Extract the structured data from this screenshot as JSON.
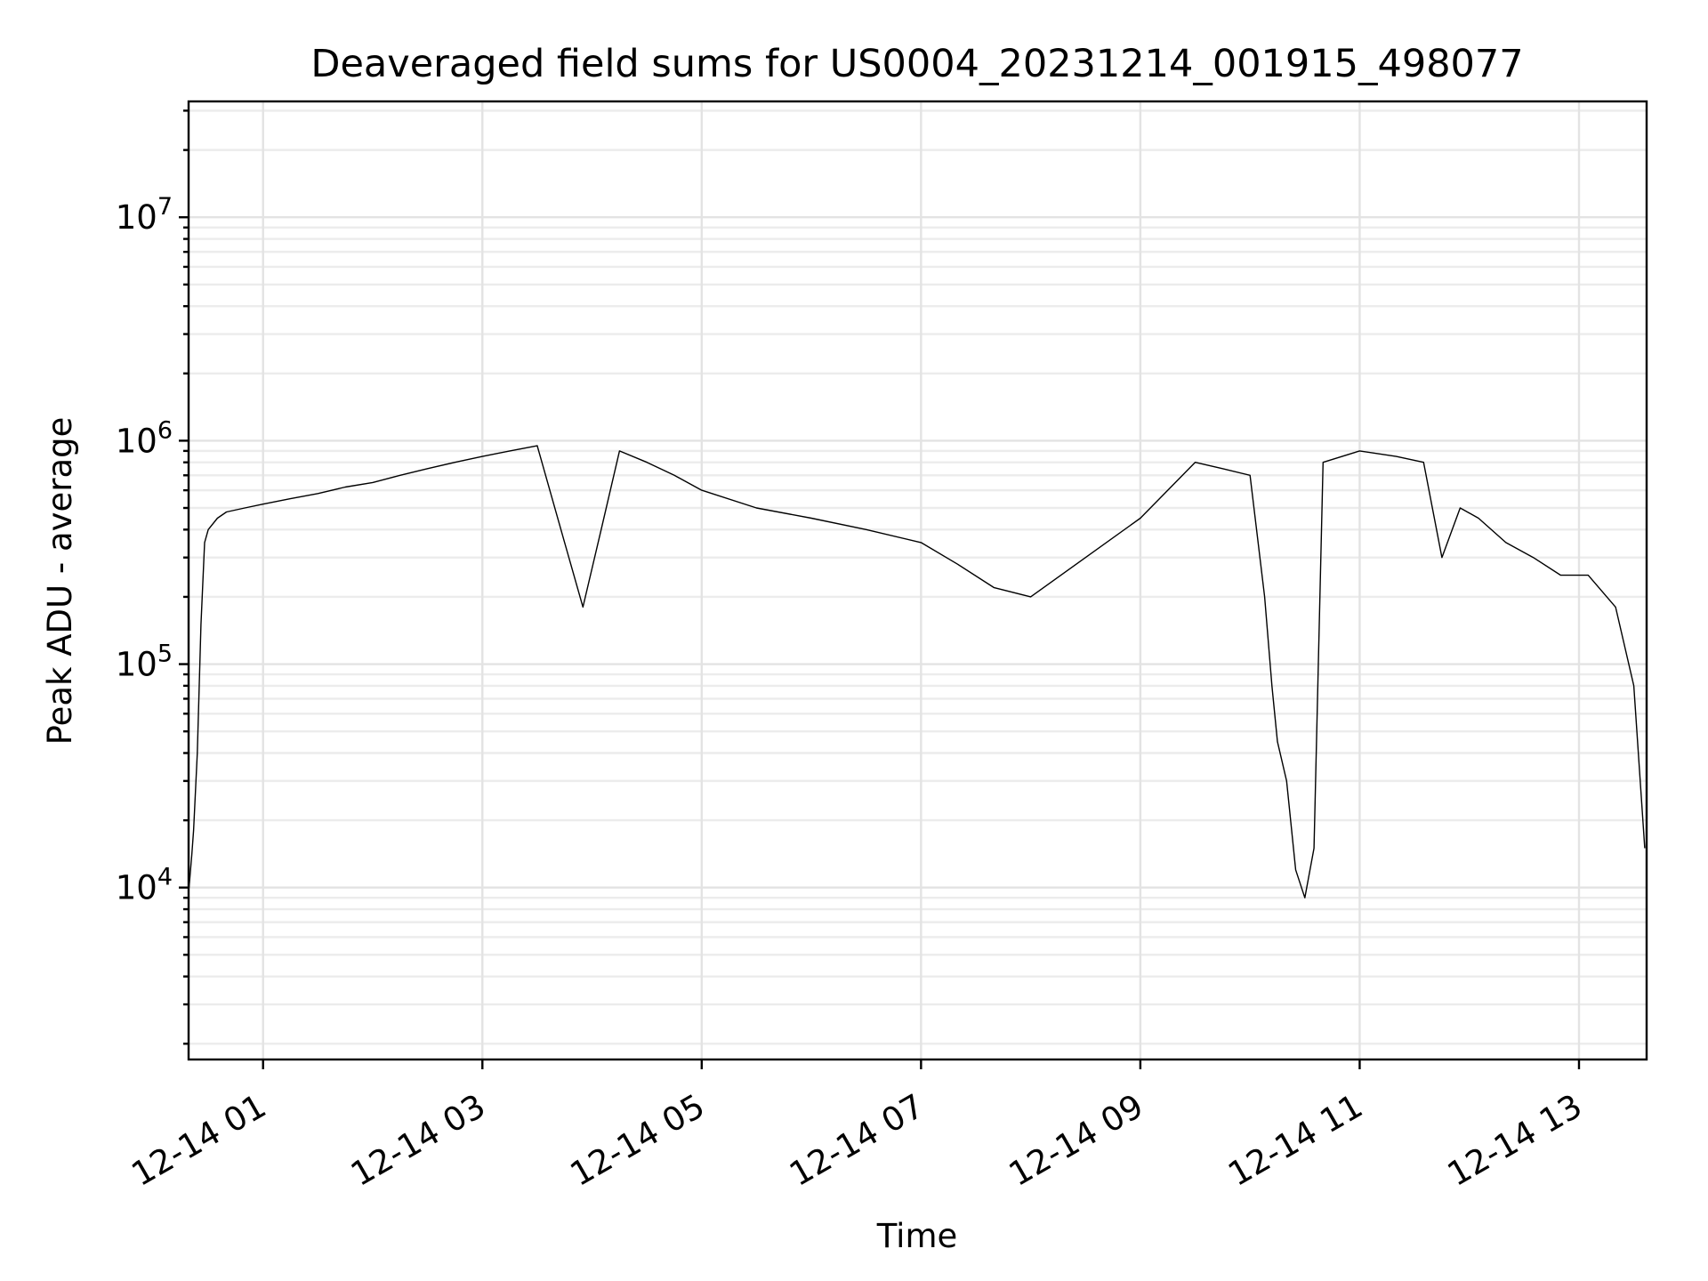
{
  "chart_data": {
    "type": "line",
    "title": "Deaveraged field sums for US0004_20231214_001915_498077",
    "xlabel": "Time",
    "ylabel": "Peak ADU - average",
    "yscale": "log",
    "ylim": [
      1700,
      33000000
    ],
    "xlim": [
      "2023-12-14T00:19:15",
      "2023-12-14T13:37:00"
    ],
    "grid": true,
    "x_ticks": [
      {
        "value": "2023-12-14T01:00",
        "label": "12-14 01"
      },
      {
        "value": "2023-12-14T03:00",
        "label": "12-14 03"
      },
      {
        "value": "2023-12-14T05:00",
        "label": "12-14 05"
      },
      {
        "value": "2023-12-14T07:00",
        "label": "12-14 07"
      },
      {
        "value": "2023-12-14T09:00",
        "label": "12-14 09"
      },
      {
        "value": "2023-12-14T11:00",
        "label": "12-14 11"
      },
      {
        "value": "2023-12-14T13:00",
        "label": "12-14 13"
      }
    ],
    "y_ticks": [
      {
        "value": 10000,
        "base": "10",
        "exp": "4"
      },
      {
        "value": 100000,
        "base": "10",
        "exp": "5"
      },
      {
        "value": 1000000,
        "base": "10",
        "exp": "6"
      },
      {
        "value": 10000000,
        "base": "10",
        "exp": "7"
      }
    ],
    "series": [
      {
        "color": "#000000",
        "x": [
          "2023-12-14T00:19:30",
          "2023-12-14T00:21:00",
          "2023-12-14T00:22:00",
          "2023-12-14T00:24:00",
          "2023-12-14T00:26:00",
          "2023-12-14T00:28:00",
          "2023-12-14T00:30:00",
          "2023-12-14T00:35:00",
          "2023-12-14T00:40:00",
          "2023-12-14T00:50:00",
          "2023-12-14T01:00:00",
          "2023-12-14T01:15:00",
          "2023-12-14T01:30:00",
          "2023-12-14T01:45:00",
          "2023-12-14T02:00:00",
          "2023-12-14T02:15:00",
          "2023-12-14T02:30:00",
          "2023-12-14T02:45:00",
          "2023-12-14T03:00:00",
          "2023-12-14T03:15:00",
          "2023-12-14T03:30:00",
          "2023-12-14T03:45:00",
          "2023-12-14T03:55:00",
          "2023-12-14T04:05:00",
          "2023-12-14T04:15:00",
          "2023-12-14T04:30:00",
          "2023-12-14T04:45:00",
          "2023-12-14T05:00:00",
          "2023-12-14T05:30:00",
          "2023-12-14T06:00:00",
          "2023-12-14T06:30:00",
          "2023-12-14T07:00:00",
          "2023-12-14T07:20:00",
          "2023-12-14T07:40:00",
          "2023-12-14T08:00:00",
          "2023-12-14T08:30:00",
          "2023-12-14T09:00:00",
          "2023-12-14T09:15:00",
          "2023-12-14T09:30:00",
          "2023-12-14T09:45:00",
          "2023-12-14T10:00:00",
          "2023-12-14T10:08:00",
          "2023-12-14T10:12:00",
          "2023-12-14T10:15:00",
          "2023-12-14T10:20:00",
          "2023-12-14T10:25:00",
          "2023-12-14T10:30:00",
          "2023-12-14T10:35:00",
          "2023-12-14T10:40:00",
          "2023-12-14T11:00:00",
          "2023-12-14T11:20:00",
          "2023-12-14T11:35:00",
          "2023-12-14T11:45:00",
          "2023-12-14T11:55:00",
          "2023-12-14T12:05:00",
          "2023-12-14T12:20:00",
          "2023-12-14T12:35:00",
          "2023-12-14T12:50:00",
          "2023-12-14T13:05:00",
          "2023-12-14T13:20:00",
          "2023-12-14T13:30:00",
          "2023-12-14T13:36:00"
        ],
        "y": [
          10000,
          14000,
          18000,
          40000,
          150000,
          350000,
          400000,
          450000,
          480000,
          500000,
          520000,
          550000,
          580000,
          620000,
          650000,
          700000,
          750000,
          800000,
          850000,
          900000,
          950000,
          350000,
          180000,
          400000,
          900000,
          800000,
          700000,
          600000,
          500000,
          450000,
          400000,
          350000,
          280000,
          220000,
          200000,
          300000,
          450000,
          600000,
          800000,
          750000,
          700000,
          200000,
          80000,
          45000,
          30000,
          12000,
          9000,
          15000,
          800000,
          900000,
          850000,
          800000,
          300000,
          500000,
          450000,
          350000,
          300000,
          250000,
          250000,
          180000,
          80000,
          15000
        ]
      }
    ]
  }
}
